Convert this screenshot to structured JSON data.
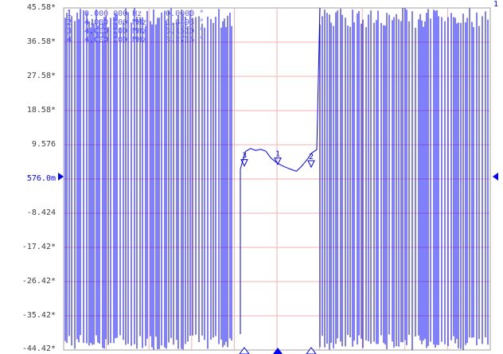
{
  "trace": {
    "channel_label": "1",
    "reference_label": "576.0m",
    "colors": {
      "trace": "#0000ff",
      "grid": "#f0b0b0",
      "border": "#a0a0a0",
      "text": "#404040"
    }
  },
  "y_axis_ticks": [
    "45.58*",
    "36.58*",
    "27.58*",
    "18.58*",
    "9.576",
    "576.0m",
    "-8.424",
    "-17.42*",
    "-26.42*",
    "-35.42*",
    "-44.42*"
  ],
  "marker_table": [
    {
      "num": "1",
      "freq": "0.000 000 Hz",
      "value": "0.0000 °"
    },
    {
      "num": "2",
      "freq": "4.000 000 MHz",
      "value": "1.8493 °"
    },
    {
      "num": "3",
      "freq": "4.000 000 MHz",
      "value": "3.1510 °"
    },
    {
      "num": "4",
      "freq": "4.000 000 MHz",
      "value": "3.2716 °"
    }
  ],
  "chart_data": {
    "type": "line",
    "ylim": [
      -44.42,
      45.58
    ],
    "x_ticks": [],
    "series": [
      {
        "values": [
          3.2,
          7.8,
          8.6,
          8.1,
          8.4,
          7.9,
          6.1,
          5.0,
          4.2,
          3.6,
          3.1,
          2.6,
          3.9,
          5.5,
          7.4,
          8.3
        ]
      }
    ],
    "markers": [
      {
        "label": "1",
        "value": 4.0
      },
      {
        "label": "2",
        "value": 3.3
      },
      {
        "label": "3",
        "value": 3.6
      }
    ],
    "scale_description": "9 / div"
  }
}
